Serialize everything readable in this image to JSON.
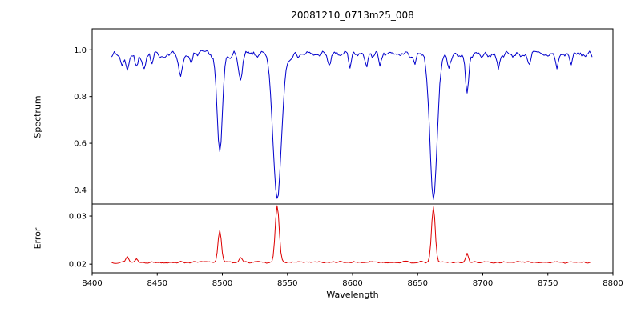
{
  "chart_data": {
    "type": "line",
    "title": "20081210_0713m25_008",
    "xlabel": "Wavelength",
    "grid": false,
    "legend": "none",
    "xlim": [
      8400,
      8800
    ],
    "xtick_values": [
      8400,
      8450,
      8500,
      8550,
      8600,
      8650,
      8700,
      8750,
      8800
    ],
    "xtick_labels": [
      "8400",
      "8450",
      "8500",
      "8550",
      "8600",
      "8650",
      "8700",
      "8750",
      "8800"
    ],
    "subplots": [
      {
        "name": "spectrum",
        "ylabel": "Spectrum",
        "color": "#0000cc",
        "ylim": [
          0.34,
          1.09
        ],
        "ytick_values": [
          0.4,
          0.6,
          0.8,
          1.0
        ],
        "ytick_labels": [
          "0.4",
          "0.6",
          "0.8",
          "1.0"
        ],
        "x_start": 8415,
        "x_end": 8784,
        "x_step": 1,
        "baseline": 0.98,
        "noise": 0.014,
        "seed": 7,
        "features": [
          {
            "center": 8498.0,
            "amp": -0.43,
            "width": 2.0
          },
          {
            "center": 8542.1,
            "amp": -0.62,
            "width": 3.2
          },
          {
            "center": 8662.1,
            "amp": -0.61,
            "width": 2.8
          },
          {
            "center": 8423,
            "amp": -0.05,
            "width": 1.0
          },
          {
            "center": 8427,
            "amp": -0.07,
            "width": 1.0
          },
          {
            "center": 8434,
            "amp": -0.06,
            "width": 1.0
          },
          {
            "center": 8440,
            "amp": -0.06,
            "width": 1.2
          },
          {
            "center": 8446,
            "amp": -0.05,
            "width": 1.0
          },
          {
            "center": 8468,
            "amp": -0.09,
            "width": 1.3
          },
          {
            "center": 8476,
            "amp": -0.05,
            "width": 1.0
          },
          {
            "center": 8514,
            "amp": -0.12,
            "width": 1.4
          },
          {
            "center": 8582,
            "amp": -0.05,
            "width": 1.0
          },
          {
            "center": 8598,
            "amp": -0.06,
            "width": 1.0
          },
          {
            "center": 8611,
            "amp": -0.05,
            "width": 1.0
          },
          {
            "center": 8621,
            "amp": -0.06,
            "width": 1.0
          },
          {
            "center": 8648,
            "amp": -0.05,
            "width": 1.0
          },
          {
            "center": 8674,
            "amp": -0.06,
            "width": 1.0
          },
          {
            "center": 8688,
            "amp": -0.17,
            "width": 1.2
          },
          {
            "center": 8712,
            "amp": -0.05,
            "width": 1.0
          },
          {
            "center": 8736,
            "amp": -0.04,
            "width": 1.0
          },
          {
            "center": 8757,
            "amp": -0.06,
            "width": 1.0
          },
          {
            "center": 8768,
            "amp": -0.04,
            "width": 1.0
          }
        ]
      },
      {
        "name": "error",
        "ylabel": "Error",
        "color": "#dd0000",
        "ylim": [
          0.0182,
          0.0325
        ],
        "ytick_values": [
          0.02,
          0.03
        ],
        "ytick_labels": [
          "0.02",
          "0.03"
        ],
        "x_start": 8415,
        "x_end": 8784,
        "x_step": 1,
        "baseline": 0.0204,
        "noise": 0.00016,
        "seed": 13,
        "features": [
          {
            "center": 8427,
            "amp": 0.0013,
            "width": 1.0
          },
          {
            "center": 8434,
            "amp": 0.0007,
            "width": 1.0
          },
          {
            "center": 8498.0,
            "amp": 0.0068,
            "width": 1.3
          },
          {
            "center": 8514,
            "amp": 0.001,
            "width": 1.1
          },
          {
            "center": 8542.1,
            "amp": 0.0118,
            "width": 1.5
          },
          {
            "center": 8662.1,
            "amp": 0.0115,
            "width": 1.4
          },
          {
            "center": 8688,
            "amp": 0.0018,
            "width": 1.0
          }
        ]
      }
    ]
  }
}
